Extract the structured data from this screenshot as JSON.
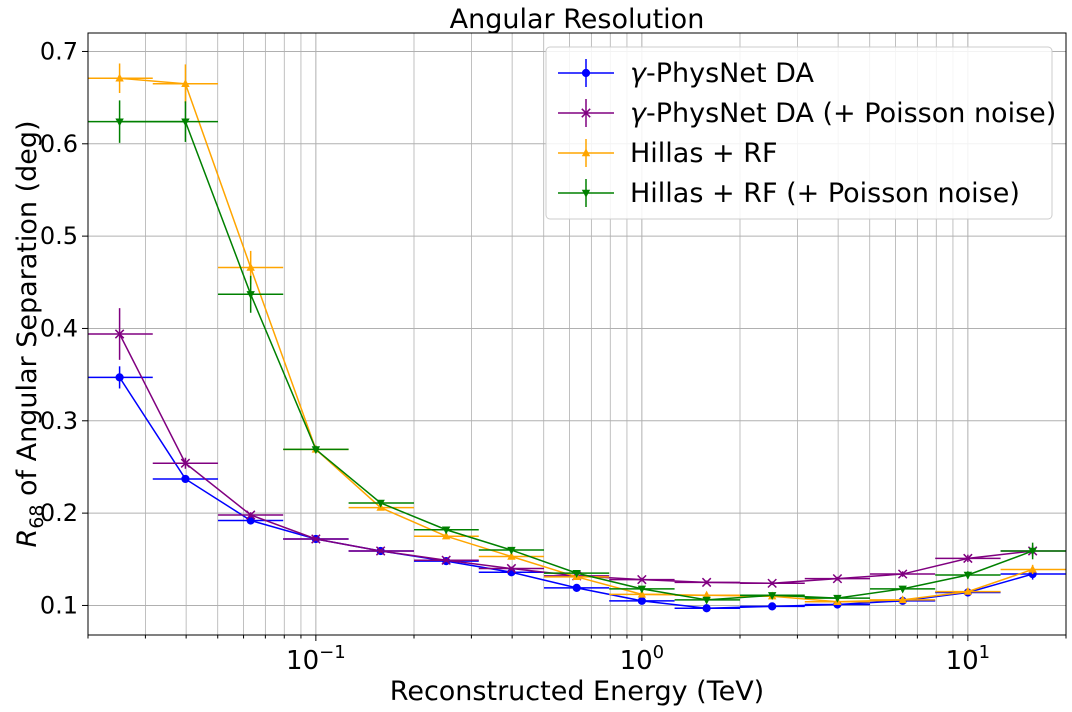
{
  "chart_data": {
    "type": "line",
    "title": "Angular Resolution",
    "xlabel": "Reconstructed Energy (TeV)",
    "ylabel_math": "R",
    "ylabel_sub": "68",
    "ylabel_rest": " of Angular Separation (deg)",
    "xscale": "log",
    "xlim": [
      0.02,
      20
    ],
    "ylim": [
      0.068,
      0.72
    ],
    "grid": true,
    "legend_position": "top-right",
    "xticks": [
      {
        "value": 0.1,
        "base": "10",
        "exp": "−1"
      },
      {
        "value": 1,
        "base": "10",
        "exp": "0"
      },
      {
        "value": 10,
        "base": "10",
        "exp": "1"
      }
    ],
    "yticks": [
      {
        "value": 0.1,
        "label": "0.1"
      },
      {
        "value": 0.2,
        "label": "0.2"
      },
      {
        "value": 0.3,
        "label": "0.3"
      },
      {
        "value": 0.4,
        "label": "0.4"
      },
      {
        "value": 0.5,
        "label": "0.5"
      },
      {
        "value": 0.6,
        "label": "0.6"
      },
      {
        "value": 0.7,
        "label": "0.7"
      }
    ],
    "series": [
      {
        "name_prefix": "γ",
        "name_rest": "-PhysNet DA",
        "color": "#0000ff",
        "marker": "circle",
        "points": [
          {
            "x": 0.025,
            "y": 0.347,
            "xlo": 0.02,
            "xhi": 0.0316,
            "yerr": 0.012
          },
          {
            "x": 0.0398,
            "y": 0.237,
            "xlo": 0.0316,
            "xhi": 0.0501,
            "yerr": 0.003
          },
          {
            "x": 0.0631,
            "y": 0.192,
            "xlo": 0.0501,
            "xhi": 0.0794,
            "yerr": 0.002
          },
          {
            "x": 0.1,
            "y": 0.172,
            "xlo": 0.0794,
            "xhi": 0.126,
            "yerr": 0.002
          },
          {
            "x": 0.158,
            "y": 0.159,
            "xlo": 0.126,
            "xhi": 0.2,
            "yerr": 0.002
          },
          {
            "x": 0.251,
            "y": 0.148,
            "xlo": 0.2,
            "xhi": 0.316,
            "yerr": 0.002
          },
          {
            "x": 0.398,
            "y": 0.136,
            "xlo": 0.316,
            "xhi": 0.501,
            "yerr": 0.002
          },
          {
            "x": 0.631,
            "y": 0.119,
            "xlo": 0.501,
            "xhi": 0.794,
            "yerr": 0.002
          },
          {
            "x": 1.0,
            "y": 0.105,
            "xlo": 0.794,
            "xhi": 1.26,
            "yerr": 0.002
          },
          {
            "x": 1.58,
            "y": 0.097,
            "xlo": 1.26,
            "xhi": 2.0,
            "yerr": 0.002
          },
          {
            "x": 2.51,
            "y": 0.099,
            "xlo": 2.0,
            "xhi": 3.16,
            "yerr": 0.002
          },
          {
            "x": 3.98,
            "y": 0.101,
            "xlo": 3.16,
            "xhi": 5.01,
            "yerr": 0.002
          },
          {
            "x": 6.31,
            "y": 0.105,
            "xlo": 5.01,
            "xhi": 7.94,
            "yerr": 0.002
          },
          {
            "x": 10.0,
            "y": 0.114,
            "xlo": 7.94,
            "xhi": 12.6,
            "yerr": 0.003
          },
          {
            "x": 15.8,
            "y": 0.134,
            "xlo": 12.6,
            "xhi": 20.0,
            "yerr": 0.006
          }
        ]
      },
      {
        "name_prefix": "γ",
        "name_rest": "-PhysNet DA (+ Poisson noise)",
        "color": "#800080",
        "marker": "x",
        "points": [
          {
            "x": 0.025,
            "y": 0.394,
            "xlo": 0.02,
            "xhi": 0.0316,
            "yerr": 0.028
          },
          {
            "x": 0.0398,
            "y": 0.254,
            "xlo": 0.0316,
            "xhi": 0.0501,
            "yerr": 0.006
          },
          {
            "x": 0.0631,
            "y": 0.198,
            "xlo": 0.0501,
            "xhi": 0.0794,
            "yerr": 0.003
          },
          {
            "x": 0.1,
            "y": 0.172,
            "xlo": 0.0794,
            "xhi": 0.126,
            "yerr": 0.002
          },
          {
            "x": 0.158,
            "y": 0.159,
            "xlo": 0.126,
            "xhi": 0.2,
            "yerr": 0.002
          },
          {
            "x": 0.251,
            "y": 0.149,
            "xlo": 0.2,
            "xhi": 0.316,
            "yerr": 0.002
          },
          {
            "x": 0.398,
            "y": 0.14,
            "xlo": 0.316,
            "xhi": 0.501,
            "yerr": 0.002
          },
          {
            "x": 0.631,
            "y": 0.132,
            "xlo": 0.501,
            "xhi": 0.794,
            "yerr": 0.002
          },
          {
            "x": 1.0,
            "y": 0.128,
            "xlo": 0.794,
            "xhi": 1.26,
            "yerr": 0.002
          },
          {
            "x": 1.58,
            "y": 0.125,
            "xlo": 1.26,
            "xhi": 2.0,
            "yerr": 0.002
          },
          {
            "x": 2.51,
            "y": 0.124,
            "xlo": 2.0,
            "xhi": 3.16,
            "yerr": 0.002
          },
          {
            "x": 3.98,
            "y": 0.129,
            "xlo": 3.16,
            "xhi": 5.01,
            "yerr": 0.002
          },
          {
            "x": 6.31,
            "y": 0.134,
            "xlo": 5.01,
            "xhi": 7.94,
            "yerr": 0.003
          },
          {
            "x": 10.0,
            "y": 0.151,
            "xlo": 7.94,
            "xhi": 12.6,
            "yerr": 0.004
          },
          {
            "x": 15.8,
            "y": 0.159,
            "xlo": 12.6,
            "xhi": 20.0,
            "yerr": 0.006
          }
        ]
      },
      {
        "name_prefix": "",
        "name_rest": "Hillas + RF",
        "color": "#ffa500",
        "marker": "triangle-up",
        "points": [
          {
            "x": 0.025,
            "y": 0.671,
            "xlo": 0.02,
            "xhi": 0.0316,
            "yerr": 0.016
          },
          {
            "x": 0.0398,
            "y": 0.665,
            "xlo": 0.0316,
            "xhi": 0.0501,
            "yerr": 0.021
          },
          {
            "x": 0.0631,
            "y": 0.466,
            "xlo": 0.0501,
            "xhi": 0.0794,
            "yerr": 0.018
          },
          {
            "x": 0.1,
            "y": 0.269,
            "xlo": 0.0794,
            "xhi": 0.126,
            "yerr": 0.003
          },
          {
            "x": 0.158,
            "y": 0.206,
            "xlo": 0.126,
            "xhi": 0.2,
            "yerr": 0.003
          },
          {
            "x": 0.251,
            "y": 0.175,
            "xlo": 0.2,
            "xhi": 0.316,
            "yerr": 0.003
          },
          {
            "x": 0.398,
            "y": 0.153,
            "xlo": 0.316,
            "xhi": 0.501,
            "yerr": 0.002
          },
          {
            "x": 0.631,
            "y": 0.131,
            "xlo": 0.501,
            "xhi": 0.794,
            "yerr": 0.002
          },
          {
            "x": 1.0,
            "y": 0.112,
            "xlo": 0.794,
            "xhi": 1.26,
            "yerr": 0.002
          },
          {
            "x": 1.58,
            "y": 0.111,
            "xlo": 1.26,
            "xhi": 2.0,
            "yerr": 0.002
          },
          {
            "x": 2.51,
            "y": 0.11,
            "xlo": 2.0,
            "xhi": 3.16,
            "yerr": 0.002
          },
          {
            "x": 3.98,
            "y": 0.104,
            "xlo": 3.16,
            "xhi": 5.01,
            "yerr": 0.002
          },
          {
            "x": 6.31,
            "y": 0.106,
            "xlo": 5.01,
            "xhi": 7.94,
            "yerr": 0.002
          },
          {
            "x": 10.0,
            "y": 0.115,
            "xlo": 7.94,
            "xhi": 12.6,
            "yerr": 0.003
          },
          {
            "x": 15.8,
            "y": 0.139,
            "xlo": 12.6,
            "xhi": 20.0,
            "yerr": 0.005
          }
        ]
      },
      {
        "name_prefix": "",
        "name_rest": "Hillas + RF (+ Poisson noise)",
        "color": "#008000",
        "marker": "triangle-down",
        "points": [
          {
            "x": 0.025,
            "y": 0.624,
            "xlo": 0.02,
            "xhi": 0.0316,
            "yerr": 0.023
          },
          {
            "x": 0.0398,
            "y": 0.624,
            "xlo": 0.0316,
            "xhi": 0.0501,
            "yerr": 0.022
          },
          {
            "x": 0.0631,
            "y": 0.437,
            "xlo": 0.0501,
            "xhi": 0.0794,
            "yerr": 0.02
          },
          {
            "x": 0.1,
            "y": 0.269,
            "xlo": 0.0794,
            "xhi": 0.126,
            "yerr": 0.004
          },
          {
            "x": 0.158,
            "y": 0.211,
            "xlo": 0.126,
            "xhi": 0.2,
            "yerr": 0.003
          },
          {
            "x": 0.251,
            "y": 0.182,
            "xlo": 0.2,
            "xhi": 0.316,
            "yerr": 0.003
          },
          {
            "x": 0.398,
            "y": 0.16,
            "xlo": 0.316,
            "xhi": 0.501,
            "yerr": 0.002
          },
          {
            "x": 0.631,
            "y": 0.135,
            "xlo": 0.501,
            "xhi": 0.794,
            "yerr": 0.002
          },
          {
            "x": 1.0,
            "y": 0.118,
            "xlo": 0.794,
            "xhi": 1.26,
            "yerr": 0.002
          },
          {
            "x": 1.58,
            "y": 0.106,
            "xlo": 1.26,
            "xhi": 2.0,
            "yerr": 0.002
          },
          {
            "x": 2.51,
            "y": 0.111,
            "xlo": 2.0,
            "xhi": 3.16,
            "yerr": 0.002
          },
          {
            "x": 3.98,
            "y": 0.108,
            "xlo": 3.16,
            "xhi": 5.01,
            "yerr": 0.002
          },
          {
            "x": 6.31,
            "y": 0.118,
            "xlo": 5.01,
            "xhi": 7.94,
            "yerr": 0.003
          },
          {
            "x": 10.0,
            "y": 0.133,
            "xlo": 7.94,
            "xhi": 12.6,
            "yerr": 0.004
          },
          {
            "x": 15.8,
            "y": 0.159,
            "xlo": 12.6,
            "xhi": 20.0,
            "yerr": 0.009
          }
        ]
      }
    ]
  }
}
